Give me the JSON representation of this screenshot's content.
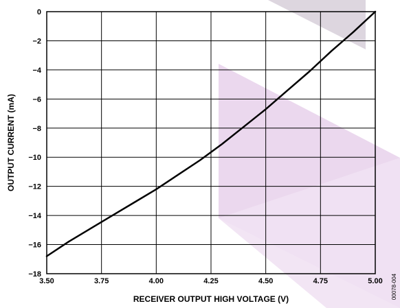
{
  "chart_data": {
    "type": "line",
    "xlabel": "RECEIVER OUTPUT HIGH VOLTAGE (V)",
    "ylabel": "OUTPUT CURRENT (mA)",
    "xlim": [
      3.5,
      5.0
    ],
    "ylim": [
      -18,
      0
    ],
    "x_ticks": [
      3.5,
      3.75,
      4.0,
      4.25,
      4.5,
      4.75,
      5.0
    ],
    "x_tick_labels": [
      "3.50",
      "3.75",
      "4.00",
      "4.25",
      "4.50",
      "4.75",
      "5.00"
    ],
    "y_ticks": [
      0,
      -2,
      -4,
      -6,
      -8,
      -10,
      -12,
      -14,
      -16,
      -18
    ],
    "y_tick_labels": [
      "0",
      "−2",
      "−4",
      "−6",
      "−8",
      "−10",
      "−12",
      "−14",
      "−16",
      "−18"
    ],
    "grid": true,
    "series": [
      {
        "x": [
          3.5,
          3.6,
          3.7,
          3.8,
          3.9,
          4.0,
          4.1,
          4.2,
          4.3,
          4.4,
          4.5,
          4.6,
          4.7,
          4.8,
          4.9,
          5.0
        ],
        "y": [
          -16.8,
          -15.8,
          -14.9,
          -14.0,
          -13.1,
          -12.2,
          -11.2,
          -10.2,
          -9.1,
          -7.9,
          -6.7,
          -5.4,
          -4.1,
          -2.7,
          -1.4,
          0.0
        ]
      }
    ],
    "figure_id": "00078-004"
  },
  "colors": {
    "line": "#000000",
    "grid": "#000000",
    "watermark_light": "#f1e2f3",
    "watermark_mid": "#e9d4ec",
    "watermark_grey": "#d9d2dc"
  }
}
